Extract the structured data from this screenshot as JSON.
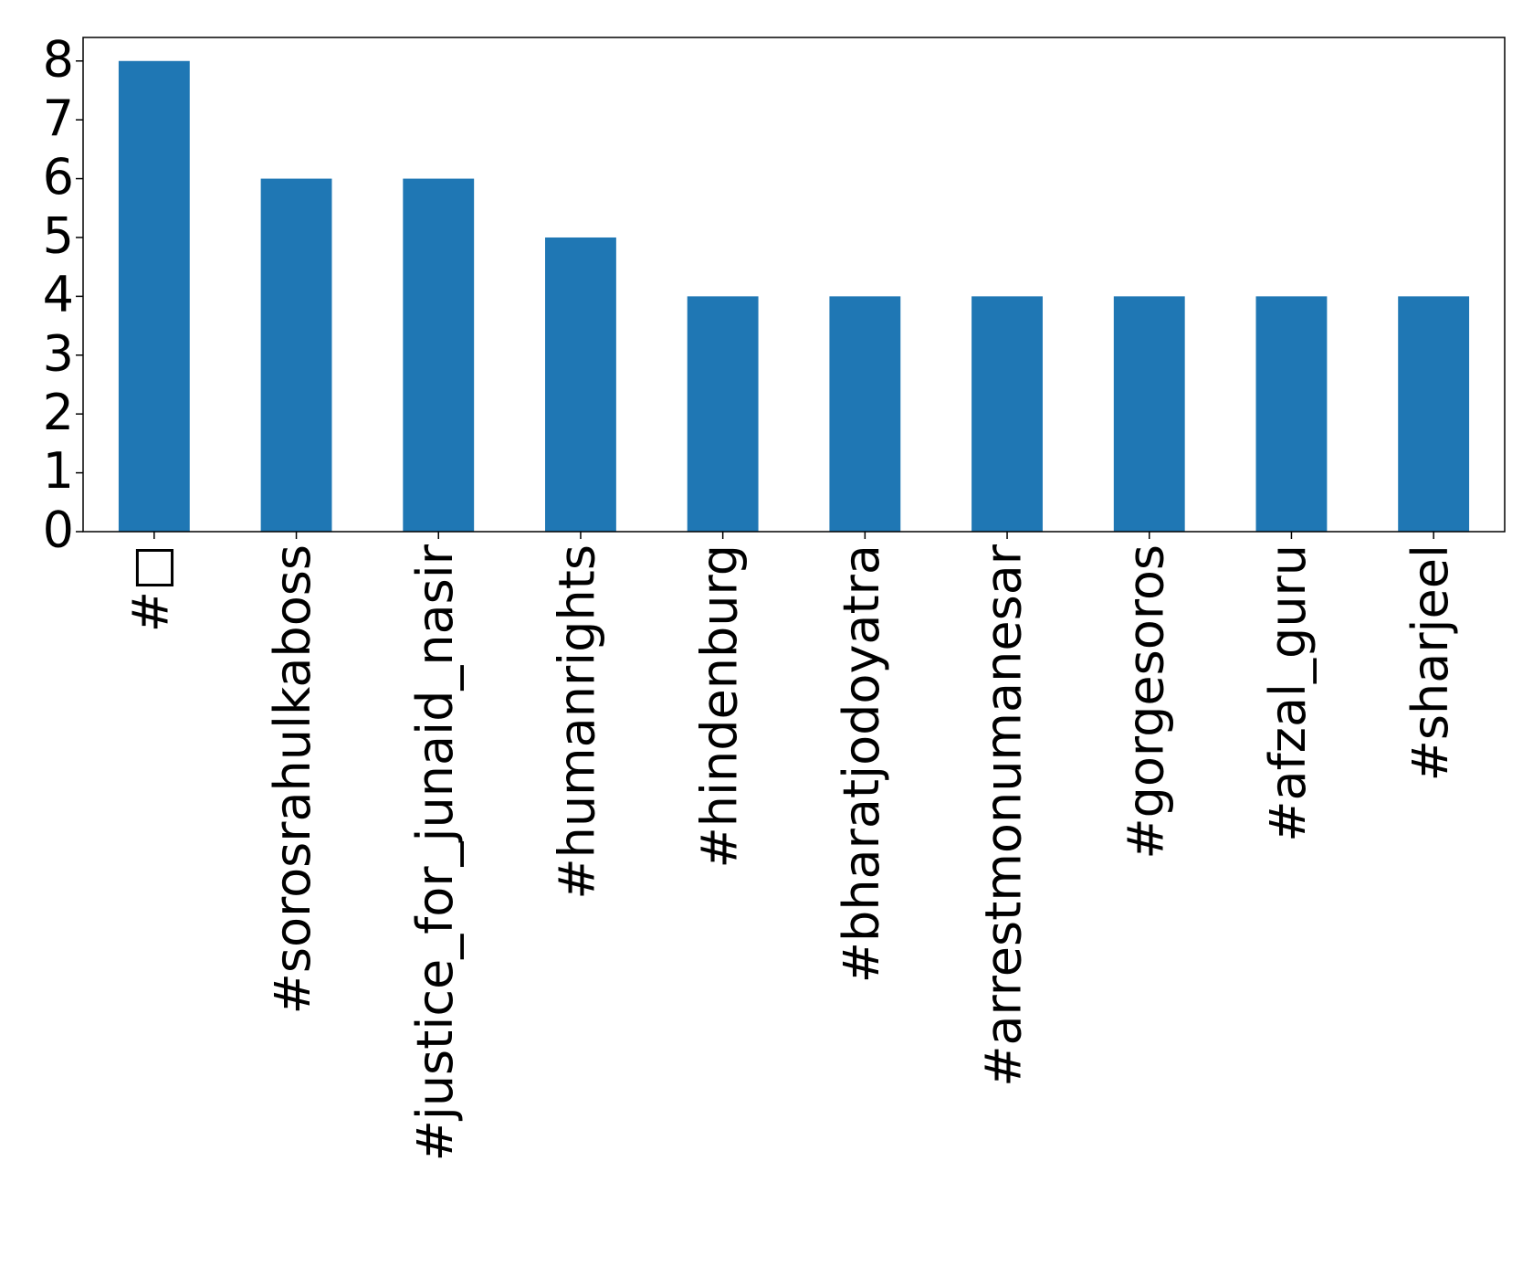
{
  "chart_data": {
    "type": "bar",
    "categories": [
      "#□",
      "#sorosrahulkaboss",
      "#justice_for_junaid_nasir",
      "#humanrights",
      "#hindenburg",
      "#bharatjodoyatra",
      "#arrestmonumanesar",
      "#gorgesoros",
      "#afzal_guru",
      "#sharjeel"
    ],
    "values": [
      8,
      6,
      6,
      5,
      4,
      4,
      4,
      4,
      4,
      4
    ],
    "color": "#1f77b4",
    "ylim": [
      0,
      8.4
    ],
    "yticks": [
      0,
      1,
      2,
      3,
      4,
      5,
      6,
      7,
      8
    ],
    "grid": false
  }
}
